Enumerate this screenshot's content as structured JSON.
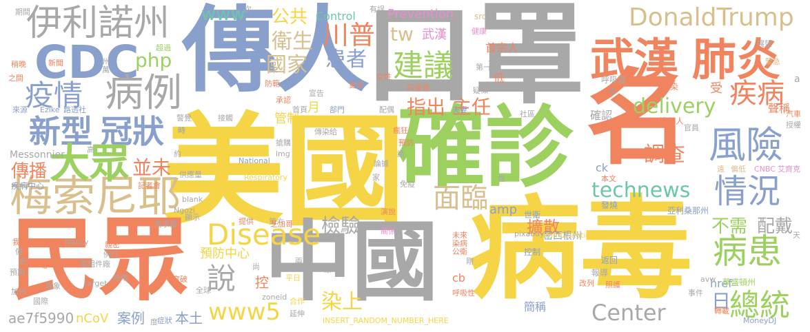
{
  "palette": {
    "yellow": "#f5d545",
    "gray": "#a8a8a8",
    "blue": "#8aa0cc",
    "orange": "#f0845f",
    "green": "#9cd15f",
    "teal": "#6cc7a6",
    "tan": "#d8bf8c",
    "pink": "#e88fcf"
  },
  "words": [
    {
      "text": "美國",
      "color": "#f5d545"
    },
    {
      "text": "病毒",
      "color": "#f5d545"
    },
    {
      "text": "口罩",
      "color": "#a8a8a8"
    },
    {
      "text": "確診",
      "color": "#9cd15f"
    },
    {
      "text": "傳人",
      "color": "#8aa0cc"
    },
    {
      "text": "名",
      "color": "#f0845f"
    },
    {
      "text": "中國",
      "color": "#a8a8a8"
    },
    {
      "text": "民眾",
      "color": "#f0845f"
    },
    {
      "text": "梅索尼耶",
      "color": "#d8bf8c"
    },
    {
      "text": "伊利諾州",
      "color": "#a8a8a8"
    },
    {
      "text": "CDC",
      "color": "#8aa0cc"
    },
    {
      "text": "疫情",
      "color": "#8aa0cc"
    },
    {
      "text": "病例",
      "color": "#a8a8a8"
    },
    {
      "text": "新型",
      "color": "#8aa0cc"
    },
    {
      "text": "冠狀",
      "color": "#8aa0cc"
    },
    {
      "text": "大眾",
      "color": "#9cd15f"
    },
    {
      "text": "武漢",
      "color": "#f0845f"
    },
    {
      "text": "肺炎",
      "color": "#f0845f"
    },
    {
      "text": "DonaldTrump",
      "color": "#d8bf8c"
    },
    {
      "text": "風險",
      "color": "#8aa0cc"
    },
    {
      "text": "情況",
      "color": "#8aa0cc"
    },
    {
      "text": "病患",
      "color": "#9cd15f"
    },
    {
      "text": "總統",
      "color": "#9cd15f"
    },
    {
      "text": "Disease",
      "color": "#f5d545"
    },
    {
      "text": "建議",
      "color": "#9cd15f"
    },
    {
      "text": "technews",
      "color": "#6cc7a6"
    },
    {
      "text": "www5",
      "color": "#f5d545"
    },
    {
      "text": "說",
      "color": "#a8a8a8"
    },
    {
      "text": "川普",
      "color": "#f0845f"
    },
    {
      "text": "衛生",
      "color": "#d8bf8c"
    },
    {
      "text": "國家",
      "color": "#d8bf8c"
    },
    {
      "text": "患者",
      "color": "#8aa0cc"
    },
    {
      "text": "疾病",
      "color": "#f0845f"
    },
    {
      "text": "delivery",
      "color": "#9cd15f"
    },
    {
      "text": "調查",
      "color": "#f0845f"
    },
    {
      "text": "Center",
      "color": "#a8a8a8"
    },
    {
      "text": "面臨",
      "color": "#d8bf8c"
    },
    {
      "text": "檢驗",
      "color": "#a8a8a8"
    },
    {
      "text": "傳播",
      "color": "#f0845f"
    },
    {
      "text": "並未",
      "color": "#f0845f"
    },
    {
      "text": "php",
      "color": "#9cd15f"
    },
    {
      "text": "www",
      "color": "#6cc7a6"
    },
    {
      "text": "公共",
      "color": "#f5d545"
    },
    {
      "text": "tw",
      "color": "#d8bf8c"
    },
    {
      "text": "武漢",
      "color": "#e88fcf"
    },
    {
      "text": "指出",
      "color": "#f0845f"
    },
    {
      "text": "主任",
      "color": "#f0845f"
    },
    {
      "text": "日",
      "color": "#8aa0cc"
    },
    {
      "text": "染上",
      "color": "#f5d545"
    },
    {
      "text": "不需",
      "color": "#9cd15f"
    },
    {
      "text": "配戴",
      "color": "#a8a8a8"
    },
    {
      "text": "擴散",
      "color": "#f0845f"
    },
    {
      "text": "amp",
      "color": "#8aa0cc"
    },
    {
      "text": "ae7f5990",
      "color": "#a8a8a8"
    },
    {
      "text": "nCoV",
      "color": "#f5d545"
    },
    {
      "text": "案例",
      "color": "#8aa0cc"
    },
    {
      "text": "本土",
      "color": "#8aa0cc"
    },
    {
      "text": "控",
      "color": "#f0845f"
    },
    {
      "text": "管制",
      "color": "#f5d545"
    },
    {
      "text": "月",
      "color": "#f5d545"
    },
    {
      "text": "預防中心",
      "color": "#f5d545"
    },
    {
      "text": "Prevention",
      "color": "#e88fcf"
    },
    {
      "text": "Control",
      "color": "#6cc7a6"
    },
    {
      "text": "首宗人",
      "color": "#f0845f"
    },
    {
      "text": "副",
      "color": "#a8a8a8"
    },
    {
      "text": "低",
      "color": "#f0845f"
    },
    {
      "text": "確認",
      "color": "#a8a8a8"
    },
    {
      "text": "cb",
      "color": "#f0845f"
    },
    {
      "text": "ck",
      "color": "#8aa0cc"
    },
    {
      "text": "href",
      "color": "#8aa0cc"
    },
    {
      "text": "簡稱",
      "color": "#8aa0cc"
    },
    {
      "text": "聲稱",
      "color": "#f0845f"
    },
    {
      "text": "受",
      "color": "#f0845f"
    },
    {
      "text": "a",
      "color": "#a8a8a8"
    },
    {
      "text": "src",
      "color": "#d8bf8c"
    },
    {
      "text": "n",
      "color": "#8aa0cc"
    },
    {
      "text": "健康",
      "color": "#e88fcf"
    },
    {
      "text": "展望",
      "color": "#a8a8a8"
    },
    {
      "text": "緊急",
      "color": "#d8bf8c"
    },
    {
      "text": "呼吸道",
      "color": "#a8a8a8"
    },
    {
      "text": "感染",
      "color": "#f0845f"
    },
    {
      "text": "境內人",
      "color": "#f0845f"
    },
    {
      "text": "亞利桑那州",
      "color": "#8aa0cc"
    },
    {
      "text": "世衛",
      "color": "#8aa0cc"
    },
    {
      "text": "密西根州",
      "color": "#8aa0cc"
    },
    {
      "text": "發燒",
      "color": "#8aa0cc"
    },
    {
      "text": "返回",
      "color": "#8aa0cc"
    },
    {
      "text": "報導",
      "color": "#a8a8a8"
    },
    {
      "text": "改列",
      "color": "#f0845f"
    },
    {
      "text": "照護",
      "color": "#f0845f"
    },
    {
      "text": "事件",
      "color": "#a8a8a8"
    },
    {
      "text": "avw",
      "color": "#a8a8a8"
    },
    {
      "text": "華盛頓州",
      "color": "#9cd15f"
    },
    {
      "text": "轉載",
      "color": "#f0845f"
    },
    {
      "text": "MoneyDJ",
      "color": "#8aa0cc"
    },
    {
      "text": "CNBC",
      "color": "#e88fcf"
    },
    {
      "text": "艾齊克",
      "color": "#e88fcf"
    },
    {
      "text": "遠",
      "color": "#d8bf8c"
    },
    {
      "text": "偏低",
      "color": "#d8bf8c"
    },
    {
      "text": "本文",
      "color": "#f0845f"
    },
    {
      "text": "官員",
      "color": "#a8a8a8"
    },
    {
      "text": "汽車",
      "color": "#f0845f"
    },
    {
      "text": "授權",
      "color": "#a8a8a8"
    },
    {
      "text": "天",
      "color": "#a8a8a8"
    },
    {
      "text": "Immunization",
      "color": "#f5d545"
    },
    {
      "text": "pixabay",
      "color": "#a8a8a8"
    },
    {
      "text": "控制",
      "color": "#8aa0cc"
    },
    {
      "text": "INSERT_RANDOM_NUMBER_HERE",
      "color": "#f5d545"
    },
    {
      "text": "合作",
      "color": "#f5d545"
    },
    {
      "text": "延伸",
      "color": "#a8a8a8"
    },
    {
      "text": "zoneid",
      "color": "#a8a8a8"
    },
    {
      "text": "平日",
      "color": "#f5d545"
    },
    {
      "text": "原本",
      "color": "#a8a8a8"
    },
    {
      "text": "兩",
      "color": "#a8a8a8"
    },
    {
      "text": "呼吸性",
      "color": "#f0845f"
    },
    {
      "text": "染病",
      "color": "#f0845f"
    },
    {
      "text": "公衛",
      "color": "#f0845f"
    },
    {
      "text": "剛",
      "color": "#a8a8a8"
    },
    {
      "text": "未來",
      "color": "#f0845f"
    },
    {
      "text": "關係",
      "color": "#e88fcf"
    },
    {
      "text": "演說",
      "color": "#f0845f"
    },
    {
      "text": "免疫",
      "color": "#a8a8a8"
    },
    {
      "text": "論據",
      "color": "#a8a8a8"
    },
    {
      "text": "請",
      "color": "#a8a8a8"
    },
    {
      "text": "預防",
      "color": "#f0845f"
    },
    {
      "text": "瘋狂",
      "color": "#f0845f"
    },
    {
      "text": "傳染給",
      "color": "#a8a8a8"
    },
    {
      "text": "National",
      "color": "#8aa0cc"
    },
    {
      "text": "Respiratory",
      "color": "#f5d545"
    },
    {
      "text": "搶購",
      "color": "#a8a8a8"
    },
    {
      "text": "img",
      "color": "#a8a8a8"
    },
    {
      "text": "家",
      "color": "#a8a8a8"
    },
    {
      "text": "性",
      "color": "#a8a8a8"
    },
    {
      "text": "芮斐德",
      "color": "#f0845f"
    },
    {
      "text": "更多",
      "color": "#f0845f"
    },
    {
      "text": "女性",
      "color": "#f0845f"
    },
    {
      "text": "宣告",
      "color": "#a8a8a8"
    },
    {
      "text": "首頁",
      "color": "#a8a8a8"
    },
    {
      "text": "部門",
      "color": "#8aa0cc"
    },
    {
      "text": "夫妻",
      "color": "#8aa0cc"
    },
    {
      "text": "社區",
      "color": "#a8a8a8"
    },
    {
      "text": "疑似",
      "color": "#a8a8a8"
    },
    {
      "text": "第一起",
      "color": "#a8a8a8"
    },
    {
      "text": "配偶",
      "color": "#a8a8a8"
    },
    {
      "text": "承認",
      "color": "#f0845f"
    },
    {
      "text": "防範",
      "color": "#f0845f"
    },
    {
      "text": "未",
      "color": "#a8a8a8"
    },
    {
      "text": "接觸",
      "color": "#a8a8a8"
    },
    {
      "text": "警覺",
      "color": "#a8a8a8"
    },
    {
      "text": "時",
      "color": "#8aa0cc"
    },
    {
      "text": "約",
      "color": "#a8a8a8"
    },
    {
      "text": "路透社",
      "color": "#8aa0cc"
    },
    {
      "text": "Ezike",
      "color": "#8aa0cc"
    },
    {
      "text": "來源",
      "color": "#8aa0cc"
    },
    {
      "text": "之間",
      "color": "#f0845f"
    },
    {
      "text": "稍晚",
      "color": "#f0845f"
    },
    {
      "text": "新聞",
      "color": "#f0845f"
    },
    {
      "text": "萬",
      "color": "#a8a8a8"
    },
    {
      "text": "州",
      "color": "#a8a8a8"
    },
    {
      "text": "超過",
      "color": "#9cd15f"
    },
    {
      "text": "期間",
      "color": "#a8a8a8"
    },
    {
      "text": "次",
      "color": "#a8a8a8"
    },
    {
      "text": "有誤",
      "color": "#a8a8a8"
    },
    {
      "text": "Messonnier",
      "color": "#a8a8a8"
    },
    {
      "text": "高",
      "color": "#a8a8a8"
    },
    {
      "text": "疾病中心",
      "color": "#8aa0cc"
    },
    {
      "text": "記者會",
      "color": "#f0845f"
    },
    {
      "text": "供應量",
      "color": "#a8a8a8"
    },
    {
      "text": "blank",
      "color": "#a8a8a8"
    },
    {
      "text": "Ngozi",
      "color": "#a8a8a8"
    },
    {
      "text": "顯示",
      "color": "#a8a8a8"
    },
    {
      "text": "提供",
      "color": "#f0845f"
    },
    {
      "text": "第六",
      "color": "#a8a8a8"
    },
    {
      "text": "芝加哥",
      "color": "#f0845f"
    },
    {
      "text": "需求量",
      "color": "#a8a8a8"
    },
    {
      "text": "我國",
      "color": "#f0845f"
    },
    {
      "text": "億",
      "color": "#a8a8a8"
    },
    {
      "text": "史",
      "color": "#a8a8a8"
    },
    {
      "text": "Nancy",
      "color": "#a8a8a8"
    },
    {
      "text": "親密",
      "color": "#f0845f"
    },
    {
      "text": "例行",
      "color": "#a8a8a8"
    },
    {
      "text": "零組件廠",
      "color": "#a8a8a8"
    },
    {
      "text": "尚",
      "color": "#a8a8a8"
    },
    {
      "text": "場",
      "color": "#f0845f"
    },
    {
      "text": "預期",
      "color": "#a8a8a8"
    },
    {
      "text": "現象",
      "color": "#a8a8a8"
    },
    {
      "text": "target",
      "color": "#a8a8a8"
    },
    {
      "text": "咳嗽",
      "color": "#a8a8a8"
    },
    {
      "text": "突破",
      "color": "#f0845f"
    },
    {
      "text": "全球",
      "color": "#a8a8a8"
    },
    {
      "text": "度",
      "color": "#a8a8a8"
    },
    {
      "text": "症狀",
      "color": "#8aa0cc"
    },
    {
      "text": "加州",
      "color": "#a8a8a8"
    },
    {
      "text": "國際",
      "color": "#a8a8a8"
    }
  ]
}
